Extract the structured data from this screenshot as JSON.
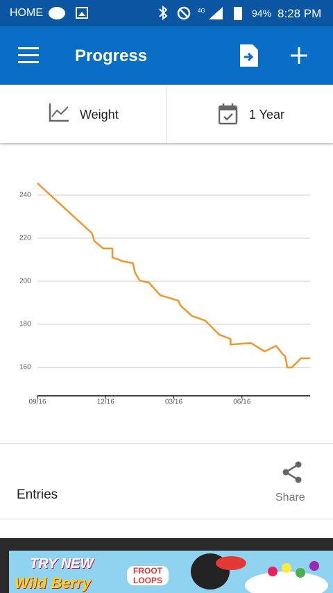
{
  "status_bar": {
    "home": "HOME",
    "battery": "94%",
    "time": "8:28 PM"
  },
  "app_bar": {
    "title": "Progress"
  },
  "tabs": {
    "metric": "Weight",
    "period": "1 Year"
  },
  "chart_data": {
    "type": "line",
    "x": [
      0,
      2.4,
      2.5,
      2.9,
      3.3,
      3.3,
      3.6,
      3.7,
      4.2,
      4.3,
      4.5,
      4.9,
      5.1,
      5.4,
      6.2,
      6.3,
      6.8,
      7.0,
      7.4,
      8.0,
      8.5,
      8.5,
      9.4,
      10.0,
      10.5,
      10.8,
      10.9,
      11.0,
      11.2,
      11.6,
      12.0
    ],
    "series": [
      {
        "color": "#f0962a",
        "values": [
          245.5,
          222.3,
          218.7,
          215.2,
          215.2,
          211,
          210,
          209.4,
          208.4,
          203.9,
          200.3,
          199.4,
          197.1,
          193.5,
          191,
          188.7,
          183.9,
          183.2,
          181.6,
          175.2,
          173.2,
          170.6,
          171.3,
          167.4,
          170,
          166.1,
          165.2,
          160,
          160,
          164.2,
          164.2
        ]
      }
    ],
    "xlim": [
      0,
      12
    ],
    "xticks": [
      {
        "value": 0,
        "label": "09/16"
      },
      {
        "value": 3,
        "label": "12/16"
      },
      {
        "value": 6,
        "label": "03/16"
      },
      {
        "value": 9,
        "label": "06/16"
      }
    ],
    "ylim": [
      146.8,
      250
    ],
    "yticks": [
      160,
      180,
      200,
      220,
      240
    ],
    "grid": true
  },
  "entries": {
    "title": "Entries",
    "share": "Share"
  },
  "ad": {
    "line1": "TRY NEW",
    "line2": "Wild Berry",
    "brand": "FROOT LOOPS"
  }
}
